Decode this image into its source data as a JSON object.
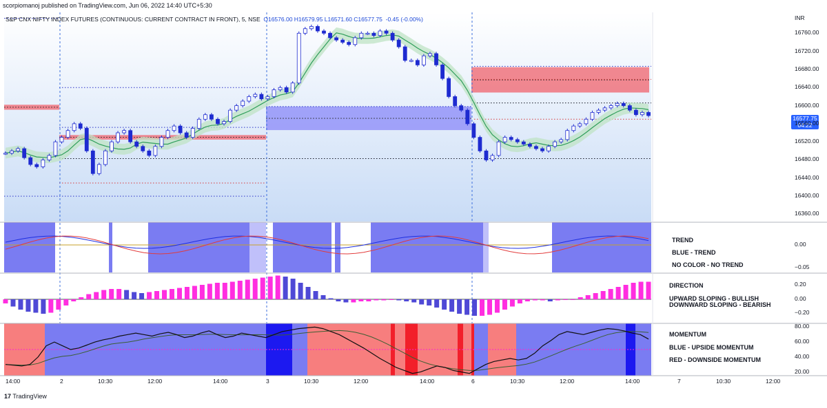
{
  "header": {
    "published": "scorpiomanoj published on TradingView.com, Jun 06, 2022 14:40 UTC+5:30",
    "symbol": "S&P CNX NIFTY INDEX FUTURES (CONTINUOUS: CURRENT CONTRACT IN FRONT), 5, NSE",
    "ohlc": "O16576.00  H16579.95  L16571.60  C16577.75",
    "change": "-0.45 (-0.00%)"
  },
  "currency": "INR",
  "footer": {
    "brand": "TradingView"
  },
  "last_price": {
    "price": "16577.75",
    "timer": "04:22"
  },
  "colors": {
    "trend_blue": "#7a7cf2",
    "momentum_red": "#f77e7e",
    "momentum_blue": "#7a7cf2",
    "direction_magenta": "#ff2ee0",
    "direction_blue": "#4f49d6",
    "zone_red": "#f0737d",
    "zone_blue": "#9494f8",
    "accent": "#2962ff"
  },
  "chart_data": [
    {
      "type": "candlestick",
      "panel": "price",
      "ylim": [
        16350,
        16800
      ],
      "y_ticks": [
        "16760.00",
        "16720.00",
        "16680.00",
        "16640.00",
        "16600.00",
        "16560.00",
        "16520.00",
        "16480.00",
        "16440.00",
        "16400.00",
        "16360.00"
      ],
      "x_ticks": [
        "14:00",
        "2",
        "10:30",
        "12:00",
        "14:00",
        "3",
        "10:30",
        "12:00",
        "14:00",
        "6",
        "10:30",
        "12:00",
        "14:00",
        "7",
        "10:30",
        "12:00"
      ],
      "close_series": [
        16495,
        16500,
        16505,
        16485,
        16470,
        16465,
        16480,
        16490,
        16520,
        16530,
        16545,
        16560,
        16550,
        16500,
        16450,
        16470,
        16500,
        16520,
        16540,
        16545,
        16520,
        16510,
        16500,
        16490,
        16510,
        16530,
        16545,
        16555,
        16540,
        16530,
        16550,
        16570,
        16580,
        16570,
        16560,
        16565,
        16590,
        16600,
        16610,
        16620,
        16625,
        16615,
        16620,
        16635,
        16640,
        16630,
        16650,
        16760,
        16770,
        16775,
        16765,
        16760,
        16750,
        16745,
        16740,
        16735,
        16750,
        16760,
        16760,
        16755,
        16765,
        16760,
        16745,
        16730,
        16700,
        16700,
        16690,
        16710,
        16715,
        16690,
        16660,
        16620,
        16600,
        16590,
        16560,
        16530,
        16500,
        16480,
        16490,
        16520,
        16530,
        16525,
        16520,
        16515,
        16510,
        16505,
        16500,
        16510,
        16520,
        16525,
        16545,
        16555,
        16560,
        16570,
        16585,
        16590,
        16595,
        16600,
        16605,
        16600,
        16590,
        16580,
        16585,
        16578
      ],
      "zones": [
        {
          "color": "red",
          "low": 16591,
          "high": 16602
        },
        {
          "color": "red",
          "low": 16525,
          "high": 16535
        },
        {
          "color": "blue",
          "low": 16546,
          "high": 16598
        },
        {
          "color": "red",
          "low": 16629,
          "high": 16685
        }
      ],
      "levels": [
        16793,
        16687,
        16658,
        16640,
        16606,
        16598,
        16570,
        16552,
        16483,
        16429,
        16400
      ]
    },
    {
      "type": "line",
      "panel": "trend",
      "y_ticks": [
        "0.00",
        "−0.05"
      ],
      "legend": [
        "TREND",
        "BLUE - TREND",
        "NO COLOR - NO TREND"
      ]
    },
    {
      "type": "bar",
      "panel": "direction",
      "y_ticks": [
        "0.20",
        "0.00",
        "−0.20"
      ],
      "legend": [
        "DIRECTION",
        "UPWARD SLOPING - BULLISH",
        "DOWNWARD SLOPING - BEARISH"
      ],
      "values": [
        -0.04,
        -0.07,
        -0.1,
        -0.12,
        -0.13,
        -0.14,
        -0.13,
        -0.1,
        -0.06,
        -0.02,
        0.02,
        0.05,
        0.07,
        0.09,
        0.1,
        0.1,
        0.09,
        0.07,
        0.06,
        0.07,
        0.08,
        0.09,
        0.1,
        0.11,
        0.12,
        0.13,
        0.14,
        0.15,
        0.16,
        0.16,
        0.17,
        0.18,
        0.19,
        0.2,
        0.21,
        0.22,
        0.23,
        0.22,
        0.2,
        0.16,
        0.12,
        0.08,
        0.04,
        0.01,
        -0.02,
        -0.03,
        -0.03,
        -0.02,
        -0.02,
        -0.01,
        -0.01,
        0,
        -0.01,
        -0.02,
        -0.03,
        -0.05,
        -0.06,
        -0.08,
        -0.1,
        -0.12,
        -0.14,
        -0.15,
        -0.16,
        -0.16,
        -0.15,
        -0.13,
        -0.1,
        -0.07,
        -0.04,
        -0.02,
        -0.01,
        -0.01,
        -0.02,
        -0.01,
        0,
        0,
        0.02,
        0.04,
        0.06,
        0.08,
        0.1,
        0.12,
        0.14,
        0.16,
        0.17,
        0.17
      ]
    },
    {
      "type": "line",
      "panel": "momentum",
      "y_ticks": [
        "80.00",
        "60.00",
        "40.00",
        "20.00"
      ],
      "legend": [
        "MOMENTUM",
        "BLUE - UPSIDE MOMENTUM",
        "RED - DOWNSIDE MOMENTUM"
      ],
      "values": [
        30,
        29,
        28,
        30,
        40,
        55,
        60,
        55,
        50,
        52,
        56,
        60,
        63,
        65,
        68,
        70,
        72,
        70,
        68,
        71,
        73,
        70,
        66,
        68,
        72,
        75,
        70,
        66,
        68,
        72,
        70,
        68,
        66,
        70,
        74,
        76,
        78,
        79,
        80,
        78,
        74,
        70,
        64,
        58,
        52,
        45,
        38,
        32,
        26,
        22,
        18,
        20,
        24,
        28,
        26,
        22,
        20,
        18,
        24,
        30,
        34,
        36,
        38,
        36,
        38,
        45,
        55,
        62,
        70,
        74,
        72,
        70,
        73,
        76,
        78,
        77,
        75,
        72,
        70,
        64
      ]
    }
  ]
}
